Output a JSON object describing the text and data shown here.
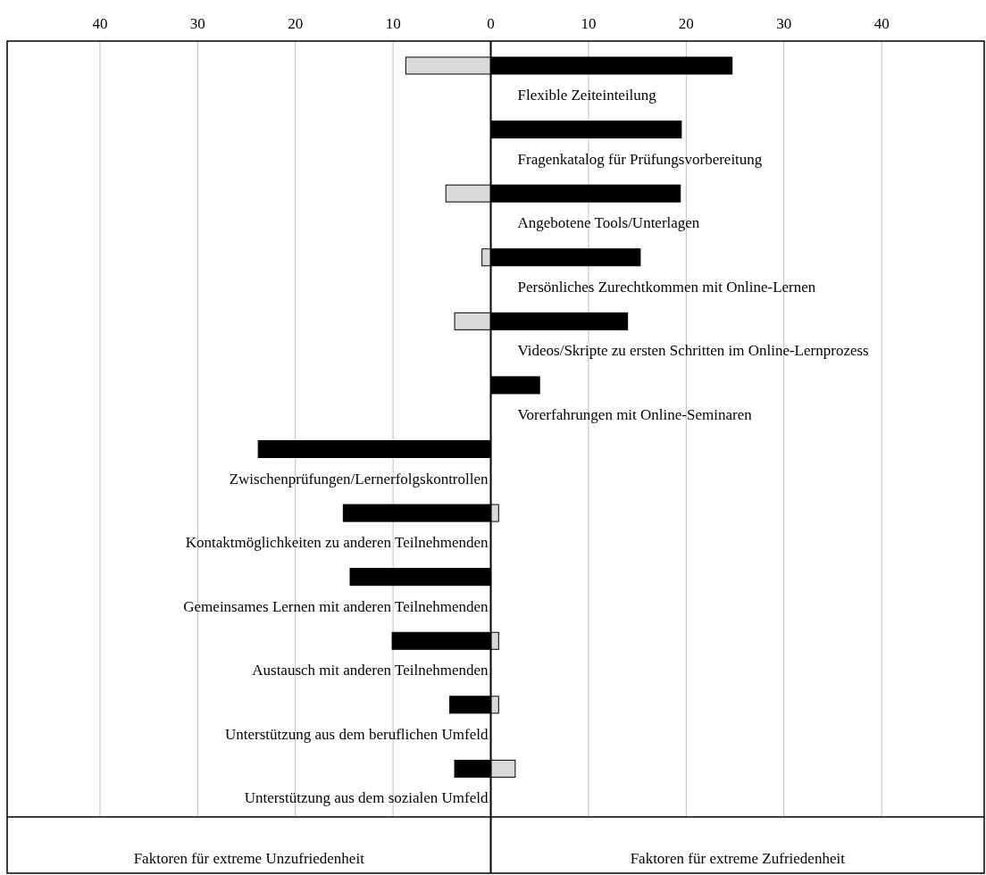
{
  "chart_data": {
    "type": "bar",
    "orientation": "horizontal",
    "categories": [
      "Flexible Zeiteinteilung",
      "Fragenkatalog für Prüfungsvorbereitung",
      "Angebotene Tools/Unterlagen",
      "Persönliches Zurechtkommen mit Online-Lernen",
      "Videos/Skripte zu ersten Schritten im Online-Lernprozess",
      "Vorerfahrungen mit Online-Seminaren",
      "Zwischenprüfungen/Lernerfolgskontrollen",
      "Kontaktmöglichkeiten zu anderen Teilnehmenden",
      "Gemeinsames Lernen mit anderen Teilnehmenden",
      "Austausch mit anderen Teilnehmenden",
      "Unterstützung aus dem beruflichen Umfeld",
      "Unterstützung aus dem sozialen Umfeld"
    ],
    "series": [
      {
        "color": "#000000",
        "values": [
          24.7,
          19.5,
          19.4,
          15.3,
          14,
          5,
          -23.8,
          -15.1,
          -14.4,
          -10.1,
          -4.2,
          -3.7
        ]
      },
      {
        "color": "#d9d9d9",
        "values": [
          -8.7,
          null,
          -4.6,
          -0.9,
          -3.7,
          null,
          null,
          0.8,
          null,
          0.8,
          0.8,
          2.5
        ]
      }
    ],
    "xlim": [
      -49.5,
      50.5
    ],
    "xticks": [
      {
        "value": -40,
        "label": "40"
      },
      {
        "value": -30,
        "label": "30"
      },
      {
        "value": -20,
        "label": "20"
      },
      {
        "value": -10,
        "label": "10"
      },
      0,
      10,
      20,
      30,
      40
    ],
    "grid": "x",
    "stacked": true,
    "annotations": [
      "Faktoren für extreme Unzufriedenheit",
      "Faktoren für extreme Zufriedenheit"
    ]
  }
}
